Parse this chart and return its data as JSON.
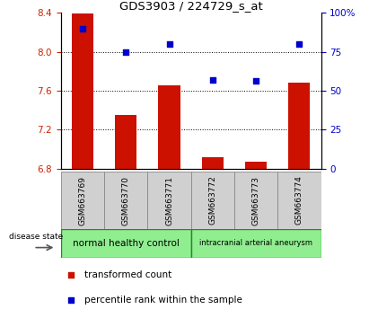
{
  "title": "GDS3903 / 224729_s_at",
  "samples": [
    "GSM663769",
    "GSM663770",
    "GSM663771",
    "GSM663772",
    "GSM663773",
    "GSM663774"
  ],
  "transformed_count": [
    8.39,
    7.35,
    7.65,
    6.92,
    6.87,
    7.68
  ],
  "percentile_rank": [
    90,
    75,
    80,
    57,
    56,
    80
  ],
  "ylim_left": [
    6.8,
    8.4
  ],
  "ylim_right": [
    0,
    100
  ],
  "yticks_left": [
    6.8,
    7.2,
    7.6,
    8.0,
    8.4
  ],
  "yticks_right": [
    0,
    25,
    50,
    75,
    100
  ],
  "right_tick_labels": [
    "0",
    "25",
    "50",
    "75",
    "100%"
  ],
  "bar_color": "#cc1100",
  "scatter_color": "#0000cc",
  "group1_label": "normal healthy control",
  "group2_label": "intracranial arterial aneurysm",
  "group_color": "#90ee90",
  "group_edge_color": "#228b22",
  "disease_label": "disease state",
  "legend_bar_label": "transformed count",
  "legend_scatter_label": "percentile rank within the sample",
  "tick_label_color_left": "#cc2200",
  "tick_label_color_right": "#0000cc",
  "bar_bottom": 6.8,
  "bar_width": 0.5,
  "sample_box_color": "#d0d0d0",
  "sample_box_edge": "#888888"
}
